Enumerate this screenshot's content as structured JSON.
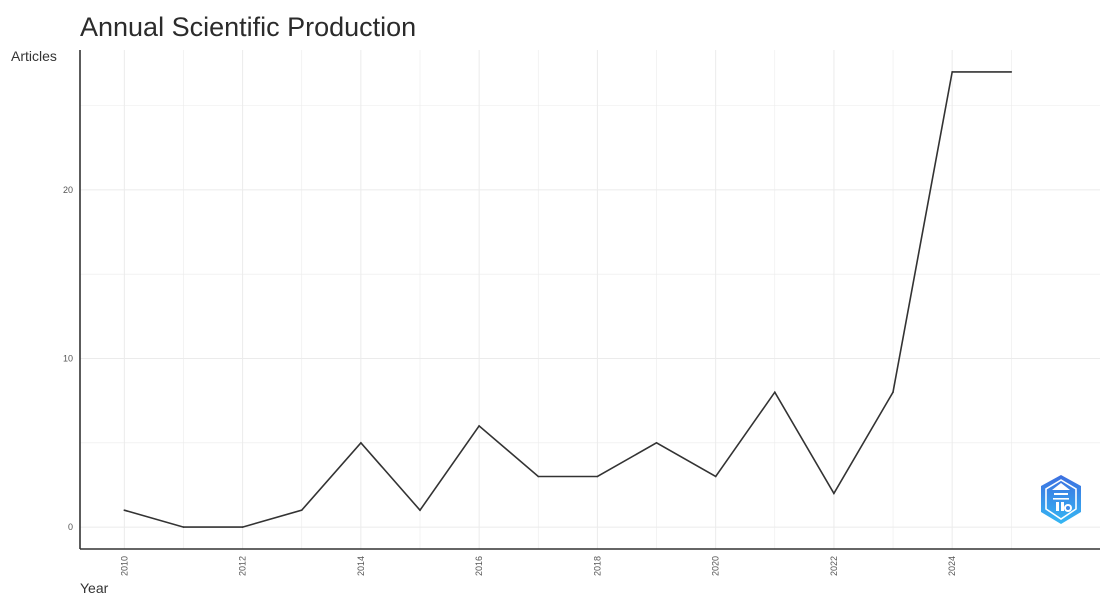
{
  "chart_data": {
    "type": "line",
    "title": "Annual Scientific Production",
    "xlabel": "Year",
    "ylabel": "Articles",
    "x": [
      2010,
      2011,
      2012,
      2013,
      2014,
      2015,
      2016,
      2017,
      2018,
      2019,
      2020,
      2021,
      2022,
      2023,
      2024,
      2025
    ],
    "series": [
      {
        "values": [
          1,
          0,
          0,
          1,
          5,
          1,
          6,
          3,
          3,
          5,
          3,
          8,
          2,
          8,
          27,
          27
        ]
      }
    ],
    "x_ticks": [
      "2010",
      "2012",
      "2014",
      "2016",
      "2018",
      "2020",
      "2022",
      "2024"
    ],
    "y_ticks": [
      "0",
      "10",
      "20"
    ],
    "xlim": [
      2009.25,
      2026.5
    ],
    "ylim": [
      -1.3,
      28.3
    ],
    "grid": true,
    "legend": "none",
    "line_color": "#333333"
  }
}
